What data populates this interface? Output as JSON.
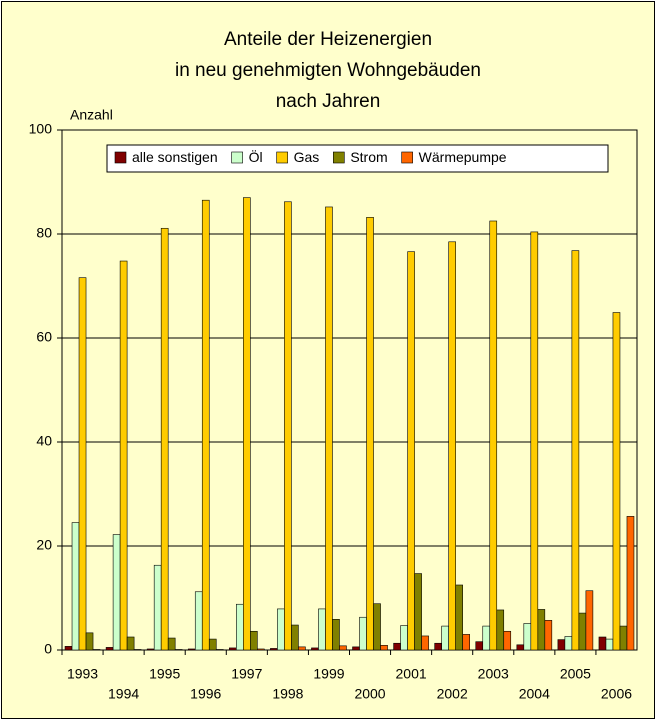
{
  "chart_data": {
    "type": "bar",
    "title": [
      "Anteile der Heizenergien",
      "in neu genehmigten Wohngebäuden",
      "nach Jahren"
    ],
    "y_label": "Anzahl",
    "categories": [
      "1993",
      "1994",
      "1995",
      "1996",
      "1997",
      "1998",
      "1999",
      "2000",
      "2001",
      "2002",
      "2003",
      "2004",
      "2005",
      "2006"
    ],
    "series": [
      {
        "name": "alle sonstigen",
        "color": "#800000",
        "values": [
          0.7,
          0.5,
          0.2,
          0.2,
          0.4,
          0.3,
          0.4,
          0.6,
          1.3,
          1.3,
          1.6,
          1.0,
          2.0,
          2.5
        ]
      },
      {
        "name": "Öl",
        "color": "#ccffcc",
        "values": [
          24.5,
          22.2,
          16.3,
          11.2,
          8.8,
          7.9,
          7.9,
          6.3,
          4.7,
          4.6,
          4.6,
          5.1,
          2.6,
          2.1
        ]
      },
      {
        "name": "Gas",
        "color": "#ffcc00",
        "values": [
          71.6,
          74.8,
          81.1,
          86.5,
          87.0,
          86.2,
          85.2,
          83.2,
          76.6,
          78.5,
          82.5,
          80.4,
          76.8,
          64.9
        ]
      },
      {
        "name": "Strom",
        "color": "#808000",
        "values": [
          3.3,
          2.5,
          2.3,
          2.1,
          3.6,
          4.8,
          5.9,
          8.9,
          14.7,
          12.5,
          7.7,
          7.8,
          7.1,
          4.6
        ]
      },
      {
        "name": "Wärmepumpe",
        "color": "#ff6600",
        "values": [
          0.1,
          0.1,
          0.1,
          0.1,
          0.2,
          0.6,
          0.8,
          0.9,
          2.7,
          3.0,
          3.6,
          5.7,
          11.4,
          25.7
        ]
      }
    ],
    "ylim": [
      0,
      100
    ],
    "yticks": [
      0,
      20,
      40,
      60,
      80,
      100
    ],
    "grid": true,
    "legend": "top"
  }
}
